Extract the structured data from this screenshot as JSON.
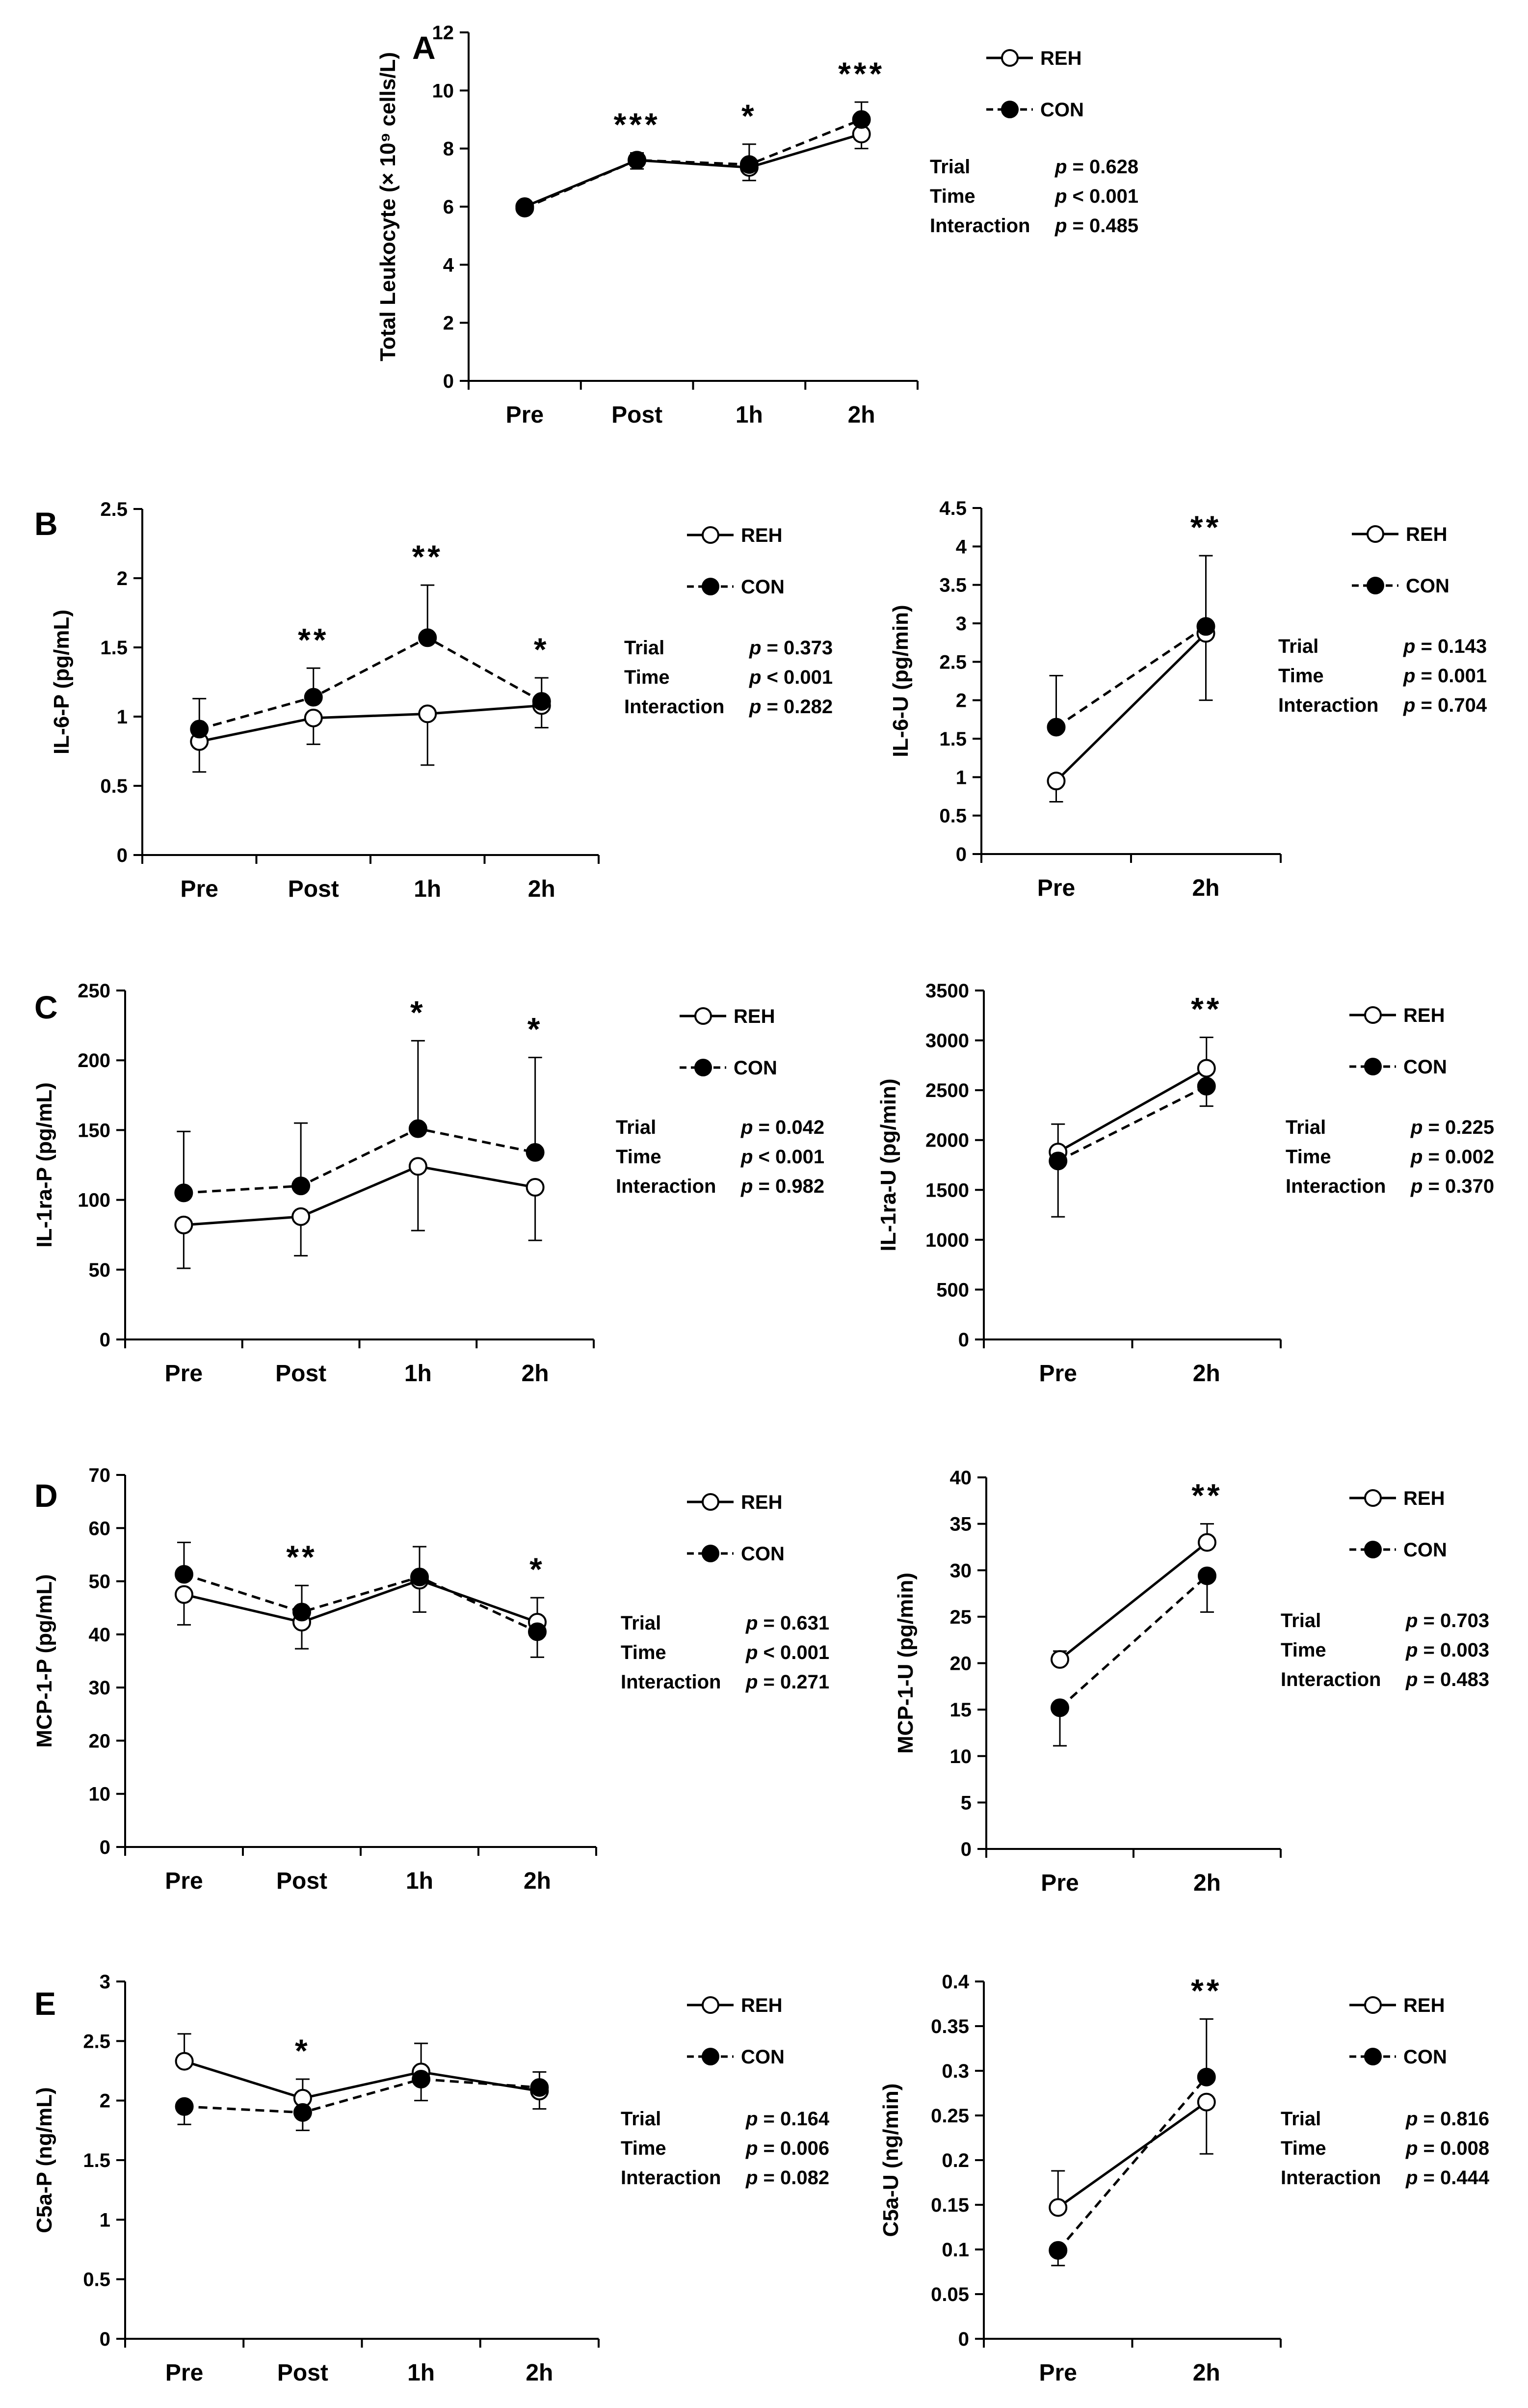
{
  "legend_labels": {
    "reh": "REH",
    "con": "CON"
  },
  "colors": {
    "line": "#000000",
    "reh_fill": "#ffffff",
    "con_fill": "#000000"
  },
  "chart_data": [
    {
      "id": "A",
      "panel_label": "A",
      "type": "line",
      "ylabel": "Total Leukocyte (× 10⁹ cells/L)",
      "ylim": [
        0,
        12
      ],
      "ytick_step": 2,
      "ytick_decimals": 0,
      "categories": [
        "Pre",
        "Post",
        "1h",
        "2h"
      ],
      "series": [
        {
          "name": "REH",
          "marker": "open",
          "line": "solid",
          "values": [
            6.0,
            7.6,
            7.35,
            8.5
          ],
          "err_up": [
            0,
            0.25,
            0.2,
            0
          ],
          "err_down": [
            0,
            0.3,
            0.45,
            0.5
          ]
        },
        {
          "name": "CON",
          "marker": "filled",
          "line": "dashed",
          "values": [
            5.95,
            7.6,
            7.45,
            9.0
          ],
          "err_up": [
            0,
            0,
            0.7,
            0.6
          ],
          "err_down": [
            0,
            0,
            0,
            0
          ]
        }
      ],
      "significance": [
        "",
        "***",
        "*",
        "***"
      ],
      "stats": [
        [
          "Trial",
          "p = 0.628"
        ],
        [
          "Time",
          "p < 0.001"
        ],
        [
          "Interaction",
          "p = 0.485"
        ]
      ]
    },
    {
      "id": "B1",
      "panel_label": "B",
      "type": "line",
      "ylabel": "IL-6-P (pg/mL)",
      "ylim": [
        0,
        2.5
      ],
      "ytick_step": 0.5,
      "ytick_decimals": 1,
      "categories": [
        "Pre",
        "Post",
        "1h",
        "2h"
      ],
      "series": [
        {
          "name": "REH",
          "marker": "open",
          "line": "solid",
          "values": [
            0.82,
            0.99,
            1.02,
            1.08
          ],
          "err_up": [
            0,
            0,
            0,
            0
          ],
          "err_down": [
            0.22,
            0.19,
            0.37,
            0.16
          ]
        },
        {
          "name": "CON",
          "marker": "filled",
          "line": "dashed",
          "values": [
            0.91,
            1.14,
            1.57,
            1.11
          ],
          "err_up": [
            0.22,
            0.21,
            0.38,
            0.17
          ],
          "err_down": [
            0,
            0,
            0,
            0
          ]
        }
      ],
      "significance": [
        "",
        "**",
        "**",
        "*"
      ],
      "stats": [
        [
          "Trial",
          "p = 0.373"
        ],
        [
          "Time",
          "p < 0.001"
        ],
        [
          "Interaction",
          "p = 0.282"
        ]
      ]
    },
    {
      "id": "B2",
      "panel_label": "",
      "type": "line",
      "ylabel": "IL-6-U (pg/min)",
      "ylim": [
        0,
        4.5
      ],
      "ytick_step": 0.5,
      "ytick_decimals": 1,
      "categories": [
        "Pre",
        "2h"
      ],
      "series": [
        {
          "name": "REH",
          "marker": "open",
          "line": "solid",
          "values": [
            0.95,
            2.87
          ],
          "err_up": [
            0,
            0
          ],
          "err_down": [
            0.27,
            0.87
          ]
        },
        {
          "name": "CON",
          "marker": "filled",
          "line": "dashed",
          "values": [
            1.65,
            2.96
          ],
          "err_up": [
            0.67,
            0.92
          ],
          "err_down": [
            0,
            0
          ]
        }
      ],
      "significance": [
        "",
        "**"
      ],
      "stats": [
        [
          "Trial",
          "p = 0.143"
        ],
        [
          "Time",
          "p = 0.001"
        ],
        [
          "Interaction",
          "p = 0.704"
        ]
      ]
    },
    {
      "id": "C1",
      "panel_label": "C",
      "type": "line",
      "ylabel": "IL-1ra-P (pg/mL)",
      "ylim": [
        0,
        250
      ],
      "ytick_step": 50,
      "ytick_decimals": 0,
      "categories": [
        "Pre",
        "Post",
        "1h",
        "2h"
      ],
      "series": [
        {
          "name": "REH",
          "marker": "open",
          "line": "solid",
          "values": [
            82,
            88,
            124,
            109
          ],
          "err_up": [
            0,
            0,
            0,
            0
          ],
          "err_down": [
            31,
            28,
            46,
            38
          ]
        },
        {
          "name": "CON",
          "marker": "filled",
          "line": "dashed",
          "values": [
            105,
            110,
            151,
            134
          ],
          "err_up": [
            44,
            45,
            63,
            68
          ],
          "err_down": [
            0,
            0,
            0,
            0
          ]
        }
      ],
      "significance": [
        "",
        "",
        "*",
        "*"
      ],
      "stats": [
        [
          "Trial",
          "p = 0.042"
        ],
        [
          "Time",
          "p < 0.001"
        ],
        [
          "Interaction",
          "p = 0.982"
        ]
      ]
    },
    {
      "id": "C2",
      "panel_label": "",
      "type": "line",
      "ylabel": "IL-1ra-U (pg/min)",
      "ylim": [
        0,
        3500
      ],
      "ytick_step": 500,
      "ytick_decimals": 0,
      "categories": [
        "Pre",
        "2h"
      ],
      "series": [
        {
          "name": "REH",
          "marker": "open",
          "line": "solid",
          "values": [
            1880,
            2720
          ],
          "err_up": [
            280,
            310
          ],
          "err_down": [
            0,
            0
          ]
        },
        {
          "name": "CON",
          "marker": "filled",
          "line": "dashed",
          "values": [
            1790,
            2540
          ],
          "err_up": [
            0,
            0
          ],
          "err_down": [
            560,
            200
          ]
        }
      ],
      "significance": [
        "",
        "**"
      ],
      "stats": [
        [
          "Trial",
          "p = 0.225"
        ],
        [
          "Time",
          "p = 0.002"
        ],
        [
          "Interaction",
          "p = 0.370"
        ]
      ]
    },
    {
      "id": "D1",
      "panel_label": "D",
      "type": "line",
      "ylabel": "MCP-1-P (pg/mL)",
      "ylim": [
        0,
        70
      ],
      "ytick_step": 10,
      "ytick_decimals": 0,
      "categories": [
        "Pre",
        "Post",
        "1h",
        "2h"
      ],
      "series": [
        {
          "name": "REH",
          "marker": "open",
          "line": "solid",
          "values": [
            47.5,
            42.3,
            50.2,
            42.3
          ],
          "err_up": [
            0,
            0,
            0,
            4.6
          ],
          "err_down": [
            5.7,
            5.0,
            6.0,
            0
          ]
        },
        {
          "name": "CON",
          "marker": "filled",
          "line": "dashed",
          "values": [
            51.3,
            44.2,
            50.8,
            40.5
          ],
          "err_up": [
            6.0,
            5.0,
            5.7,
            0
          ],
          "err_down": [
            0,
            0,
            0,
            4.8
          ]
        }
      ],
      "significance": [
        "",
        "**",
        "",
        "*"
      ],
      "stats": [
        [
          "Trial",
          "p = 0.631"
        ],
        [
          "Time",
          "p < 0.001"
        ],
        [
          "Interaction",
          "p = 0.271"
        ]
      ]
    },
    {
      "id": "D2",
      "panel_label": "",
      "type": "line",
      "ylabel": "MCP-1-U (pg/min)",
      "ylim": [
        0,
        40
      ],
      "ytick_step": 5,
      "ytick_decimals": 0,
      "categories": [
        "Pre",
        "2h"
      ],
      "series": [
        {
          "name": "REH",
          "marker": "open",
          "line": "solid",
          "values": [
            20.4,
            33.0
          ],
          "err_up": [
            0.9,
            2.0
          ],
          "err_down": [
            0,
            0
          ]
        },
        {
          "name": "CON",
          "marker": "filled",
          "line": "dashed",
          "values": [
            15.2,
            29.4
          ],
          "err_up": [
            0,
            0
          ],
          "err_down": [
            4.1,
            3.9
          ]
        }
      ],
      "significance": [
        "",
        "**"
      ],
      "stats": [
        [
          "Trial",
          "p = 0.703"
        ],
        [
          "Time",
          "p = 0.003"
        ],
        [
          "Interaction",
          "p = 0.483"
        ]
      ]
    },
    {
      "id": "E1",
      "panel_label": "E",
      "type": "line",
      "ylabel": "C5a-P (ng/mL)",
      "ylim": [
        0,
        3
      ],
      "ytick_step": 0.5,
      "ytick_decimals": 1,
      "categories": [
        "Pre",
        "Post",
        "1h",
        "2h"
      ],
      "series": [
        {
          "name": "REH",
          "marker": "open",
          "line": "solid",
          "values": [
            2.33,
            2.02,
            2.24,
            2.08
          ],
          "err_up": [
            0.23,
            0.16,
            0.24,
            0.16
          ],
          "err_down": [
            0,
            0,
            0,
            0
          ]
        },
        {
          "name": "CON",
          "marker": "filled",
          "line": "dashed",
          "values": [
            1.95,
            1.9,
            2.18,
            2.11
          ],
          "err_up": [
            0,
            0,
            0,
            0
          ],
          "err_down": [
            0.15,
            0.15,
            0.18,
            0.18
          ]
        }
      ],
      "significance": [
        "",
        "*",
        "",
        ""
      ],
      "stats": [
        [
          "Trial",
          "p = 0.164"
        ],
        [
          "Time",
          "p = 0.006"
        ],
        [
          "Interaction",
          "p = 0.082"
        ]
      ]
    },
    {
      "id": "E2",
      "panel_label": "",
      "type": "line",
      "ylabel": "C5a-U (ng/min)",
      "ylim": [
        0,
        0.4
      ],
      "ytick_step": 0.05,
      "ytick_decimals": 2,
      "categories": [
        "Pre",
        "2h"
      ],
      "series": [
        {
          "name": "REH",
          "marker": "open",
          "line": "solid",
          "values": [
            0.147,
            0.265
          ],
          "err_up": [
            0.041,
            0
          ],
          "err_down": [
            0,
            0.058
          ]
        },
        {
          "name": "CON",
          "marker": "filled",
          "line": "dashed",
          "values": [
            0.099,
            0.293
          ],
          "err_up": [
            0,
            0.065
          ],
          "err_down": [
            0.017,
            0
          ]
        }
      ],
      "significance": [
        "",
        "**"
      ],
      "stats": [
        [
          "Trial",
          "p = 0.816"
        ],
        [
          "Time",
          "p = 0.008"
        ],
        [
          "Interaction",
          "p = 0.444"
        ]
      ]
    }
  ]
}
